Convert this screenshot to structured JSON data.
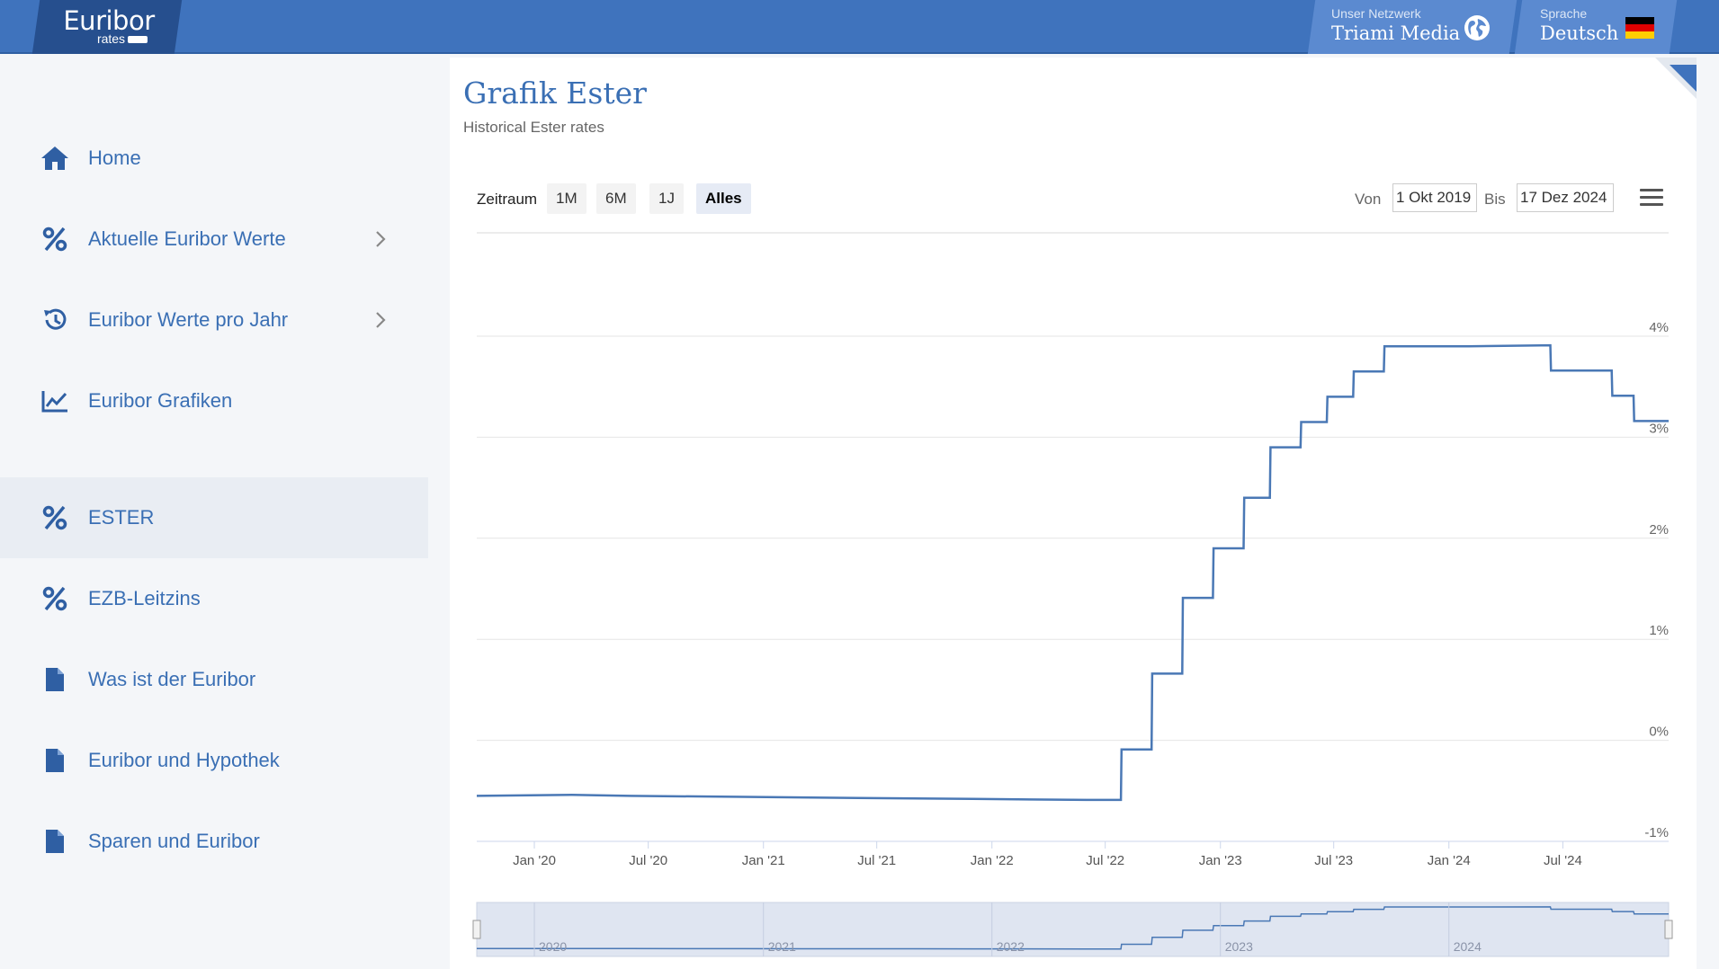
{
  "header": {
    "logo_main": "Euribor",
    "logo_sub": "rates",
    "network_label": "Unser Netzwerk",
    "network_value": "Triami Media",
    "language_label": "Sprache",
    "language_value": "Deutsch"
  },
  "sidebar": {
    "items": [
      {
        "label": "Home",
        "icon": "home-icon",
        "has_submenu": false
      },
      {
        "label": "Aktuelle Euribor Werte",
        "icon": "percent-icon",
        "has_submenu": true
      },
      {
        "label": "Euribor Werte pro Jahr",
        "icon": "history-icon",
        "has_submenu": true
      },
      {
        "label": "Euribor Grafiken",
        "icon": "chart-icon",
        "has_submenu": false
      },
      {
        "label": "ESTER",
        "icon": "percent-icon",
        "has_submenu": false,
        "active": true
      },
      {
        "label": "EZB-Leitzins",
        "icon": "percent-icon",
        "has_submenu": false
      },
      {
        "label": "Was ist der Euribor",
        "icon": "document-icon",
        "has_submenu": false
      },
      {
        "label": "Euribor und Hypothek",
        "icon": "document-icon",
        "has_submenu": false
      },
      {
        "label": "Sparen und Euribor",
        "icon": "document-icon",
        "has_submenu": false
      }
    ]
  },
  "main": {
    "title": "Grafik Ester",
    "subtitle": "Historical Ester rates",
    "range_label": "Zeitraum",
    "range_buttons": [
      "1M",
      "6M",
      "1J",
      "Alles"
    ],
    "range_selected": "Alles",
    "from_label": "Von",
    "from_value": "1 Okt 2019",
    "to_label": "Bis",
    "to_value": "17 Dez 2024"
  },
  "colors": {
    "accent": "#3f73bd",
    "line": "#4a78b5",
    "nav_text": "#3a6fb4"
  },
  "chart_data": {
    "type": "line",
    "title": "",
    "xlabel": "",
    "ylabel": "",
    "y_ticks": [
      "4%",
      "3%",
      "2%",
      "1%",
      "0%",
      "-1%"
    ],
    "ylim": [
      -1,
      4
    ],
    "x_ticks": [
      "Jan '20",
      "Jul '20",
      "Jan '21",
      "Jul '21",
      "Jan '22",
      "Jul '22",
      "Jan '23",
      "Jul '23",
      "Jan '24",
      "Jul '24"
    ],
    "x_range": [
      "2019-10-01",
      "2024-12-17"
    ],
    "navigator_labels": [
      "2020",
      "2021",
      "2022",
      "2023",
      "2024"
    ],
    "series": [
      {
        "points": [
          [
            "2019-10-01",
            -0.55
          ],
          [
            "2020-03-01",
            -0.54
          ],
          [
            "2020-06-01",
            -0.55
          ],
          [
            "2020-12-01",
            -0.56
          ],
          [
            "2021-06-01",
            -0.57
          ],
          [
            "2021-12-01",
            -0.58
          ],
          [
            "2022-06-01",
            -0.59
          ],
          [
            "2022-07-26",
            -0.59
          ],
          [
            "2022-07-27",
            -0.09
          ],
          [
            "2022-09-13",
            -0.09
          ],
          [
            "2022-09-14",
            0.66
          ],
          [
            "2022-11-01",
            0.66
          ],
          [
            "2022-11-02",
            1.41
          ],
          [
            "2022-12-20",
            1.41
          ],
          [
            "2022-12-21",
            1.9
          ],
          [
            "2023-02-07",
            1.9
          ],
          [
            "2023-02-08",
            2.4
          ],
          [
            "2023-03-21",
            2.4
          ],
          [
            "2023-03-22",
            2.9
          ],
          [
            "2023-05-09",
            2.9
          ],
          [
            "2023-05-10",
            3.15
          ],
          [
            "2023-06-20",
            3.15
          ],
          [
            "2023-06-21",
            3.4
          ],
          [
            "2023-08-01",
            3.4
          ],
          [
            "2023-08-02",
            3.65
          ],
          [
            "2023-09-19",
            3.65
          ],
          [
            "2023-09-20",
            3.9
          ],
          [
            "2024-02-01",
            3.9
          ],
          [
            "2024-06-11",
            3.91
          ],
          [
            "2024-06-12",
            3.66
          ],
          [
            "2024-09-17",
            3.66
          ],
          [
            "2024-09-18",
            3.41
          ],
          [
            "2024-10-22",
            3.41
          ],
          [
            "2024-10-23",
            3.16
          ],
          [
            "2024-12-17",
            3.16
          ]
        ]
      }
    ]
  }
}
